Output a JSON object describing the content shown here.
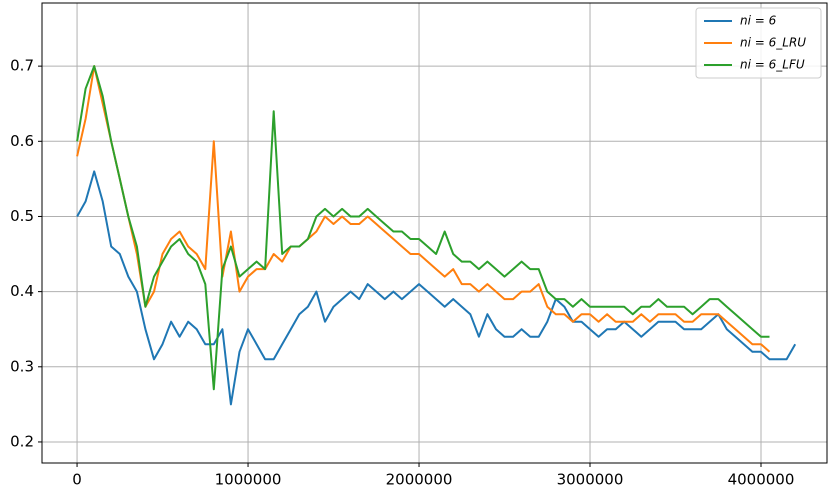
{
  "chart_data": {
    "type": "line",
    "x": [
      0,
      50000,
      100000,
      150000,
      200000,
      250000,
      300000,
      350000,
      400000,
      450000,
      500000,
      550000,
      600000,
      650000,
      700000,
      750000,
      800000,
      850000,
      900000,
      950000,
      1000000,
      1050000,
      1100000,
      1150000,
      1200000,
      1250000,
      1300000,
      1350000,
      1400000,
      1450000,
      1500000,
      1550000,
      1600000,
      1650000,
      1700000,
      1750000,
      1800000,
      1850000,
      1900000,
      1950000,
      2000000,
      2050000,
      2100000,
      2150000,
      2200000,
      2250000,
      2300000,
      2350000,
      2400000,
      2450000,
      2500000,
      2550000,
      2600000,
      2650000,
      2700000,
      2750000,
      2800000,
      2850000,
      2900000,
      2950000,
      3000000,
      3050000,
      3100000,
      3150000,
      3200000,
      3250000,
      3300000,
      3350000,
      3400000,
      3450000,
      3500000,
      3550000,
      3600000,
      3650000,
      3700000,
      3750000,
      3800000,
      3850000,
      3900000,
      3950000,
      4000000,
      4050000,
      4100000,
      4150000,
      4200000
    ],
    "series": [
      {
        "name": "ni = 6",
        "color": "#1f77b4",
        "values": [
          0.5,
          0.52,
          0.56,
          0.52,
          0.46,
          0.45,
          0.42,
          0.4,
          0.35,
          0.31,
          0.33,
          0.36,
          0.34,
          0.36,
          0.35,
          0.33,
          0.33,
          0.35,
          0.25,
          0.32,
          0.35,
          0.33,
          0.31,
          0.31,
          0.33,
          0.35,
          0.37,
          0.38,
          0.4,
          0.36,
          0.38,
          0.39,
          0.4,
          0.39,
          0.41,
          0.4,
          0.39,
          0.4,
          0.39,
          0.4,
          0.41,
          0.4,
          0.39,
          0.38,
          0.39,
          0.38,
          0.37,
          0.34,
          0.37,
          0.35,
          0.34,
          0.34,
          0.35,
          0.34,
          0.34,
          0.36,
          0.39,
          0.38,
          0.36,
          0.36,
          0.35,
          0.34,
          0.35,
          0.35,
          0.36,
          0.35,
          0.34,
          0.35,
          0.36,
          0.36,
          0.36,
          0.35,
          0.35,
          0.35,
          0.36,
          0.37,
          0.35,
          0.34,
          0.33,
          0.32,
          0.32,
          0.31,
          0.31,
          0.31,
          0.33
        ]
      },
      {
        "name": "ni = 6_LRU",
        "color": "#ff7f0e",
        "values": [
          0.58,
          0.63,
          0.7,
          0.65,
          0.6,
          0.55,
          0.5,
          0.45,
          0.38,
          0.4,
          0.45,
          0.47,
          0.48,
          0.46,
          0.45,
          0.43,
          0.6,
          0.42,
          0.48,
          0.4,
          0.42,
          0.43,
          0.43,
          0.45,
          0.44,
          0.46,
          0.46,
          0.47,
          0.48,
          0.5,
          0.49,
          0.5,
          0.49,
          0.49,
          0.5,
          0.49,
          0.48,
          0.47,
          0.46,
          0.45,
          0.45,
          0.44,
          0.43,
          0.42,
          0.43,
          0.41,
          0.41,
          0.4,
          0.41,
          0.4,
          0.39,
          0.39,
          0.4,
          0.4,
          0.41,
          0.38,
          0.37,
          0.37,
          0.36,
          0.37,
          0.37,
          0.36,
          0.37,
          0.36,
          0.36,
          0.36,
          0.37,
          0.36,
          0.37,
          0.37,
          0.37,
          0.36,
          0.36,
          0.37,
          0.37,
          0.37,
          0.36,
          0.35,
          0.34,
          0.33,
          0.33,
          0.32,
          null,
          null,
          null
        ]
      },
      {
        "name": "ni = 6_LFU",
        "color": "#2ca02c",
        "values": [
          0.6,
          0.67,
          0.7,
          0.66,
          0.6,
          0.55,
          0.5,
          0.46,
          0.38,
          0.42,
          0.44,
          0.46,
          0.47,
          0.45,
          0.44,
          0.41,
          0.27,
          0.43,
          0.46,
          0.42,
          0.43,
          0.44,
          0.43,
          0.64,
          0.45,
          0.46,
          0.46,
          0.47,
          0.5,
          0.51,
          0.5,
          0.51,
          0.5,
          0.5,
          0.51,
          0.5,
          0.49,
          0.48,
          0.48,
          0.47,
          0.47,
          0.46,
          0.45,
          0.48,
          0.45,
          0.44,
          0.44,
          0.43,
          0.44,
          0.43,
          0.42,
          0.43,
          0.44,
          0.43,
          0.43,
          0.4,
          0.39,
          0.39,
          0.38,
          0.39,
          0.38,
          0.38,
          0.38,
          0.38,
          0.38,
          0.37,
          0.38,
          0.38,
          0.39,
          0.38,
          0.38,
          0.38,
          0.37,
          0.38,
          0.39,
          0.39,
          0.38,
          0.37,
          0.36,
          0.35,
          0.34,
          0.34,
          null,
          null,
          null
        ]
      }
    ],
    "xlim": [
      -205000,
      4386000
    ],
    "ylim": [
      0.172,
      0.784
    ],
    "xticks": [
      0,
      1000000,
      2000000,
      3000000,
      4000000
    ],
    "yticks": [
      0.2,
      0.3,
      0.4,
      0.5,
      0.6,
      0.7
    ],
    "grid": true,
    "legend": "upper right"
  }
}
